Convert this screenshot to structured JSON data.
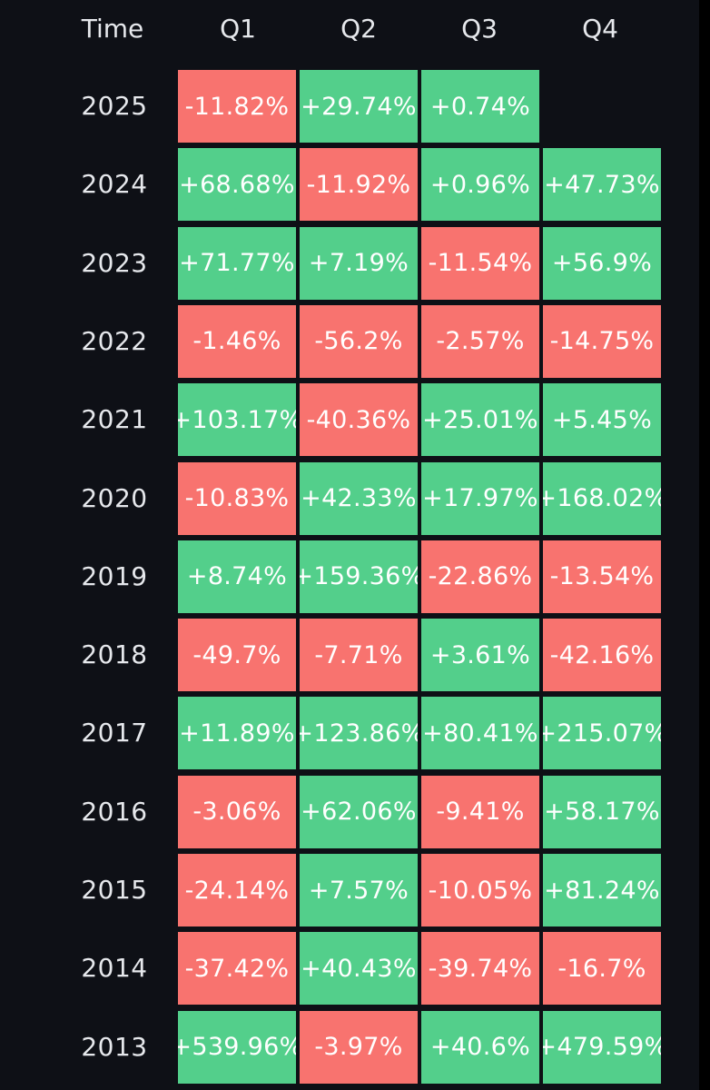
{
  "chart_data": {
    "type": "table",
    "columns": [
      "Time",
      "Q1",
      "Q2",
      "Q3",
      "Q4"
    ],
    "colors": {
      "positive": "#53cf8b",
      "negative": "#f8736f",
      "background": "#0e1016"
    },
    "rows": [
      {
        "year": "2025",
        "values": [
          "-11.82%",
          "+29.74%",
          "+0.74%",
          null
        ]
      },
      {
        "year": "2024",
        "values": [
          "+68.68%",
          "-11.92%",
          "+0.96%",
          "+47.73%"
        ]
      },
      {
        "year": "2023",
        "values": [
          "+71.77%",
          "+7.19%",
          "-11.54%",
          "+56.9%"
        ]
      },
      {
        "year": "2022",
        "values": [
          "-1.46%",
          "-56.2%",
          "-2.57%",
          "-14.75%"
        ]
      },
      {
        "year": "2021",
        "values": [
          "+103.17%",
          "-40.36%",
          "+25.01%",
          "+5.45%"
        ]
      },
      {
        "year": "2020",
        "values": [
          "-10.83%",
          "+42.33%",
          "+17.97%",
          "+168.02%"
        ]
      },
      {
        "year": "2019",
        "values": [
          "+8.74%",
          "+159.36%",
          "-22.86%",
          "-13.54%"
        ]
      },
      {
        "year": "2018",
        "values": [
          "-49.7%",
          "-7.71%",
          "+3.61%",
          "-42.16%"
        ]
      },
      {
        "year": "2017",
        "values": [
          "+11.89%",
          "+123.86%",
          "+80.41%",
          "+215.07%"
        ]
      },
      {
        "year": "2016",
        "values": [
          "-3.06%",
          "+62.06%",
          "-9.41%",
          "+58.17%"
        ]
      },
      {
        "year": "2015",
        "values": [
          "-24.14%",
          "+7.57%",
          "-10.05%",
          "+81.24%"
        ]
      },
      {
        "year": "2014",
        "values": [
          "-37.42%",
          "+40.43%",
          "-39.74%",
          "-16.7%"
        ]
      },
      {
        "year": "2013",
        "values": [
          "+539.96%",
          "-3.97%",
          "+40.6%",
          "+479.59%"
        ]
      }
    ]
  }
}
